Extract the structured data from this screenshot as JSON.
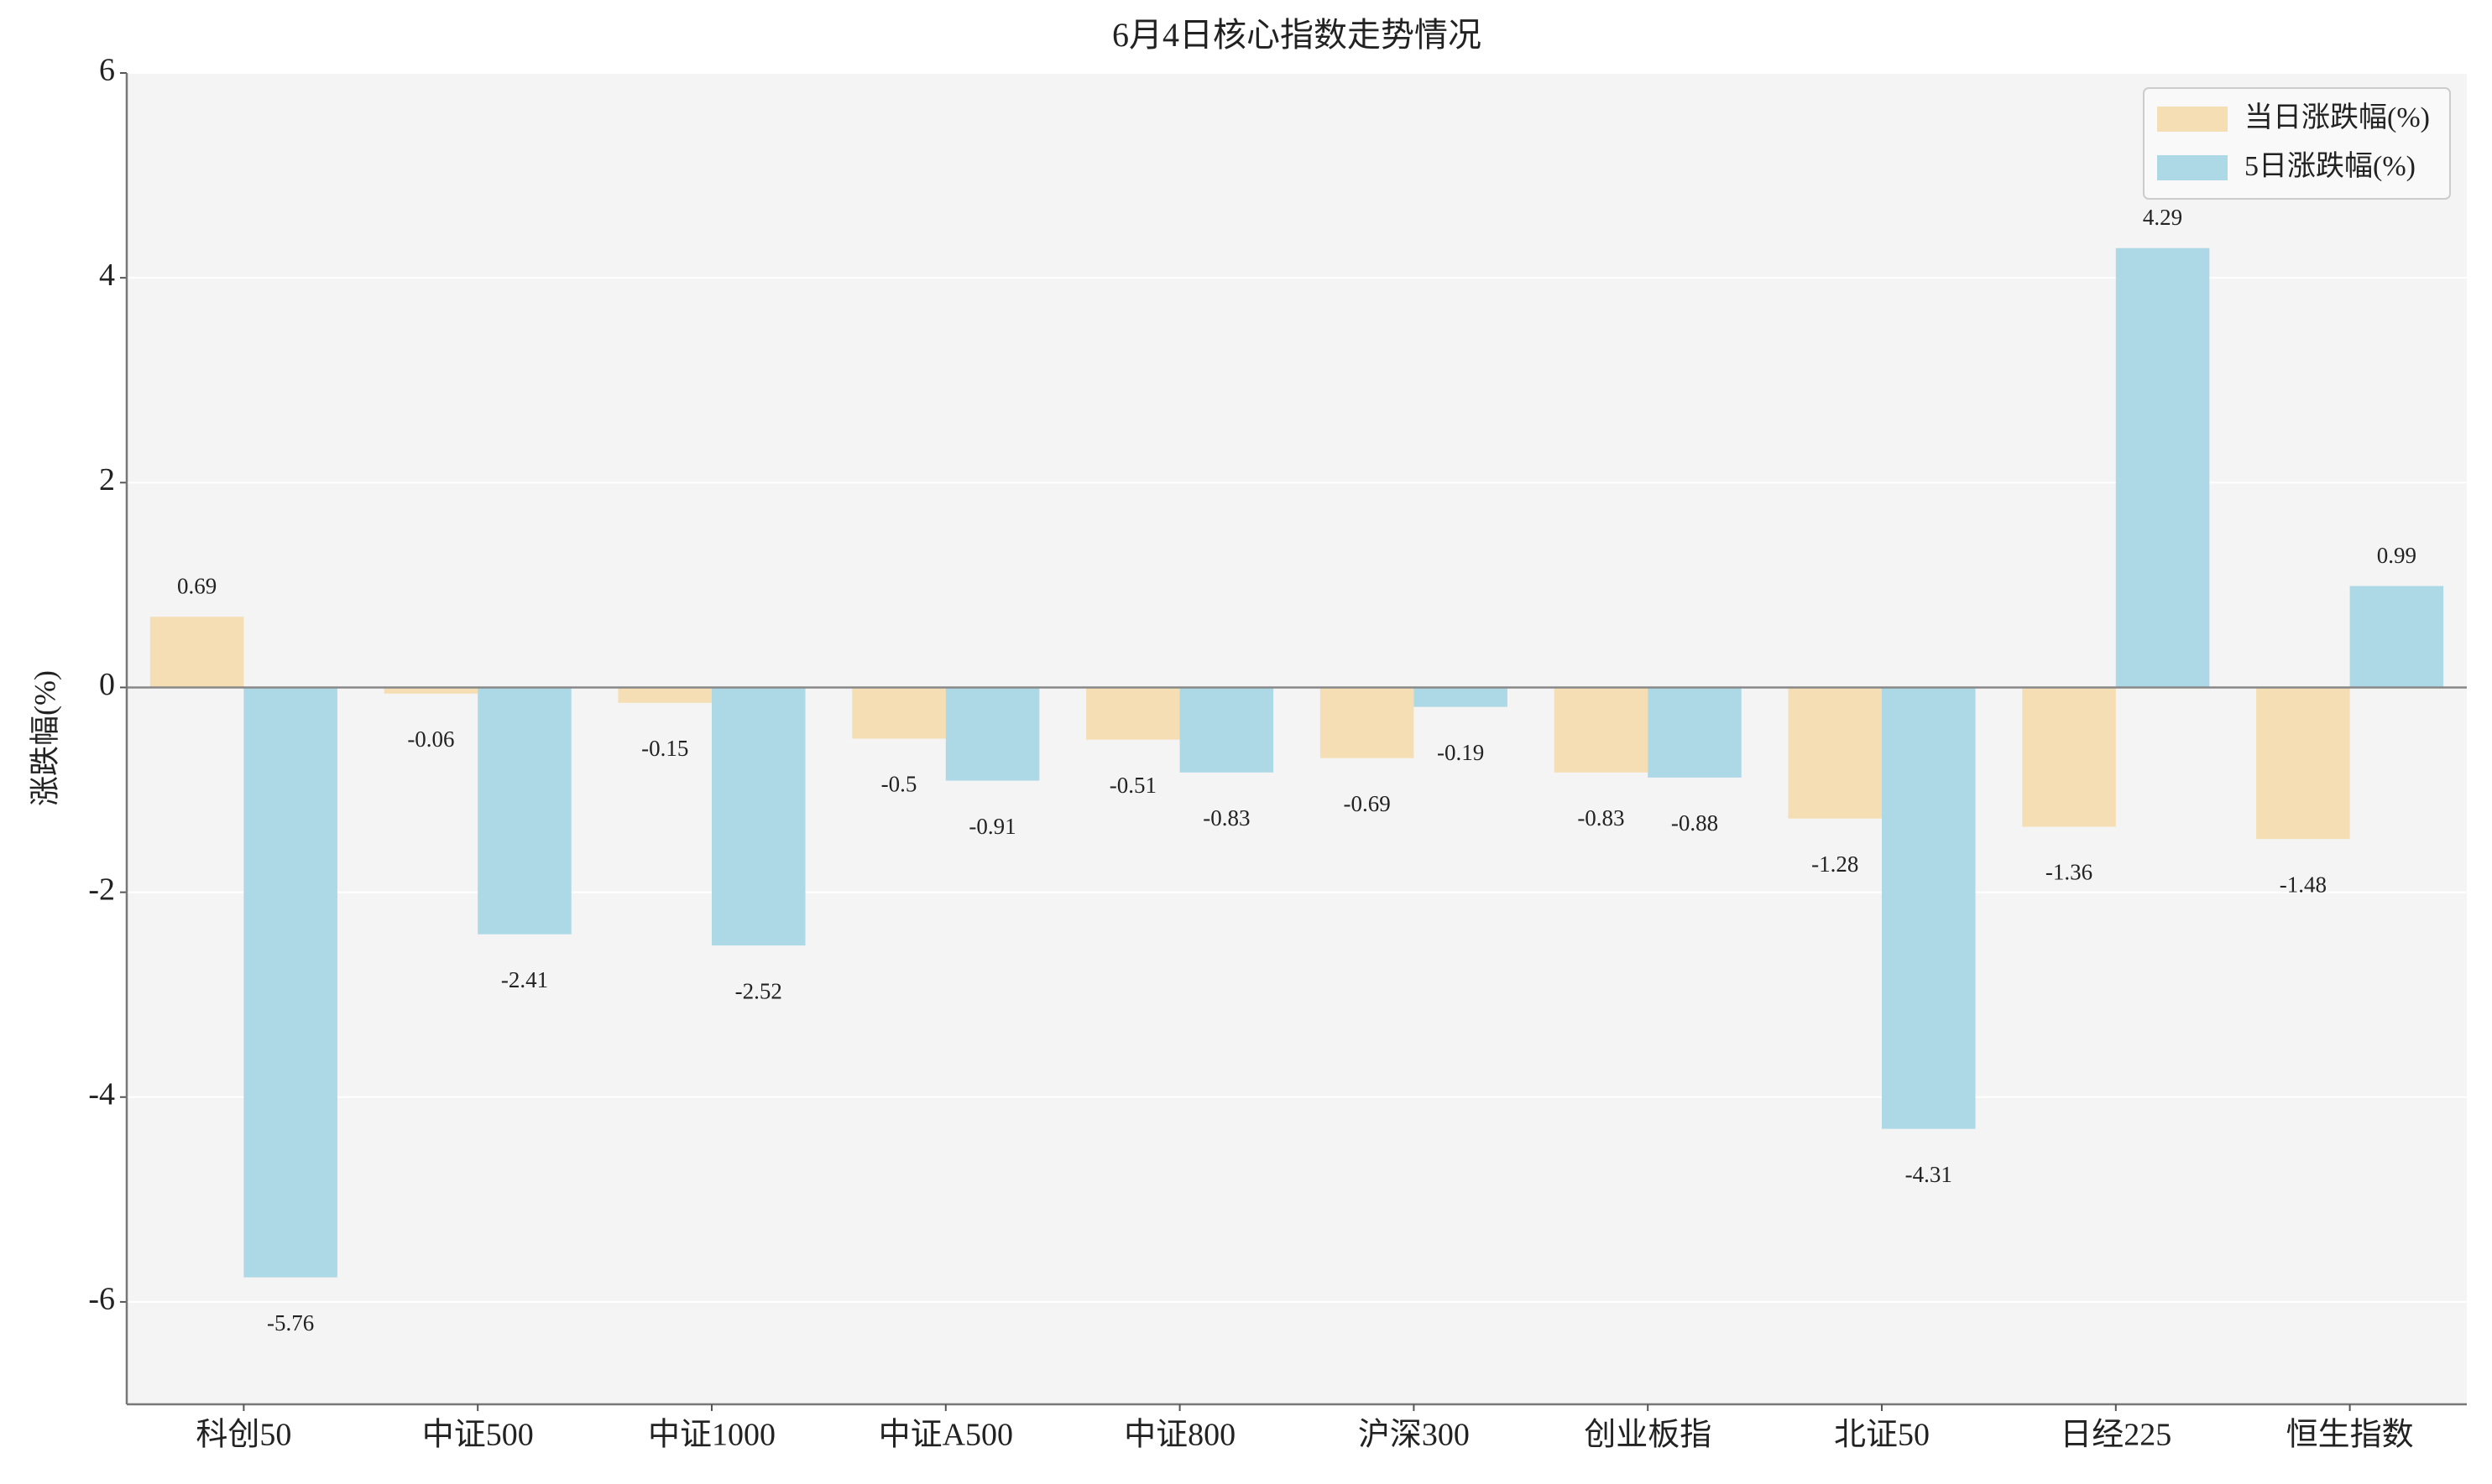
{
  "chart_data": {
    "type": "bar",
    "title": "6月4日核心指数走势情况",
    "ylabel": "涨跌幅(%)",
    "categories": [
      "科创50",
      "中证500",
      "中证1000",
      "中证A500",
      "中证800",
      "沪深300",
      "创业板指",
      "北证50",
      "日经225",
      "恒生指数"
    ],
    "series": [
      {
        "name": "当日涨跌幅(%)",
        "color": "#f5deb3",
        "values": [
          0.69,
          -0.06,
          -0.15,
          -0.5,
          -0.51,
          -0.69,
          -0.83,
          -1.28,
          -1.36,
          -1.48
        ]
      },
      {
        "name": "5日涨跌幅(%)",
        "color": "#add8e6",
        "values": [
          -5.76,
          -2.41,
          -2.52,
          -0.91,
          -0.83,
          -0.19,
          -0.88,
          -4.31,
          4.29,
          0.99
        ]
      }
    ],
    "ylim": [
      -7,
      6
    ],
    "yticks": [
      -6,
      -4,
      -2,
      0,
      2,
      4,
      6
    ],
    "grid": true,
    "legend": "upper right"
  }
}
